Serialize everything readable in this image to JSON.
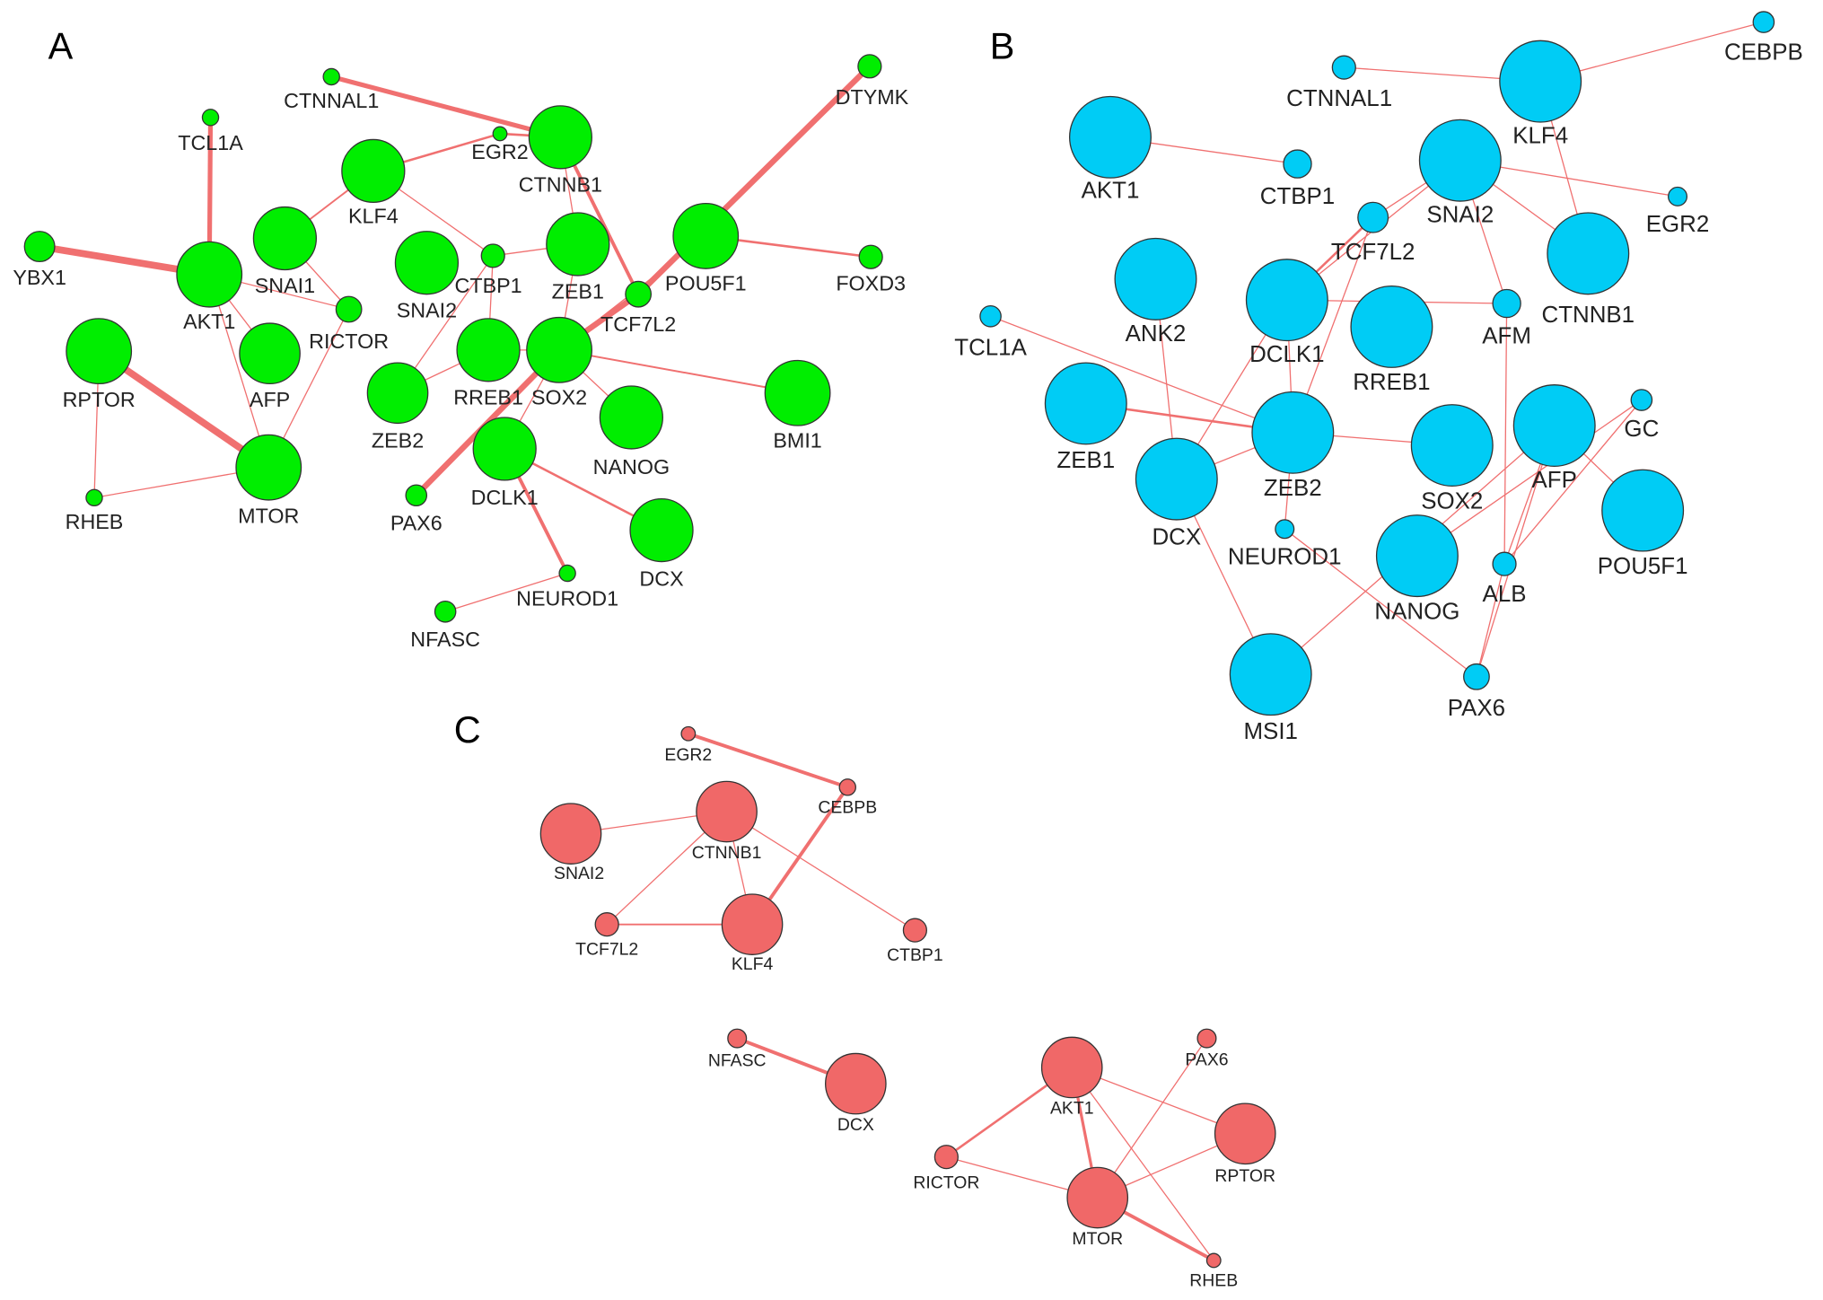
{
  "panels": [
    {
      "label": "A",
      "nodes": [
        "CTNNAL1",
        "TCL1A",
        "EGR2",
        "CTNNB1",
        "DTYMK",
        "KLF4",
        "YBX1",
        "AKT1",
        "SNAI1",
        "SNAI2",
        "CTBP1",
        "ZEB1",
        "TCF7L2",
        "POU5F1",
        "FOXD3",
        "RICTOR",
        "RPTOR",
        "AFP",
        "RREB1",
        "SOX2",
        "ZEB2",
        "NANOG",
        "BMI1",
        "RHEB",
        "MTOR",
        "PAX6",
        "DCLK1",
        "DCX",
        "NEUROD1",
        "NFASC"
      ]
    },
    {
      "label": "B",
      "nodes": [
        "CEBPB",
        "CTNNAL1",
        "KLF4",
        "AKT1",
        "CTBP1",
        "SNAI2",
        "EGR2",
        "TCF7L2",
        "CTNNB1",
        "TCL1A",
        "ANK2",
        "DCLK1",
        "RREB1",
        "AFM",
        "GC",
        "ZEB1",
        "ZEB2",
        "SOX2",
        "AFP",
        "POU5F1",
        "DCX",
        "NEUROD1",
        "NANOG",
        "ALB",
        "MSI1",
        "PAX6"
      ]
    },
    {
      "label": "C",
      "nodes": [
        "EGR2",
        "CEBPB",
        "SNAI2",
        "CTNNB1",
        "TCF7L2",
        "KLF4",
        "CTBP1",
        "NFASC",
        "DCX",
        "AKT1",
        "PAX6",
        "RPTOR",
        "RICTOR",
        "MTOR",
        "RHEB"
      ]
    }
  ]
}
